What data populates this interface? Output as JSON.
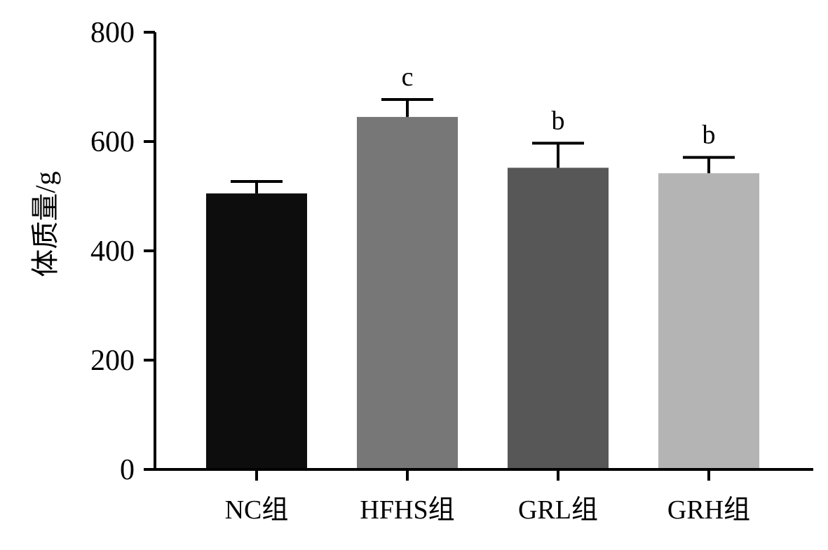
{
  "chart_data": {
    "type": "bar",
    "title": "",
    "xlabel": "",
    "ylabel": "体质量/g",
    "ylim": [
      0,
      800
    ],
    "yticks": [
      "0",
      "200",
      "400",
      "600",
      "800"
    ],
    "categories": [
      "NC组",
      "HFHS组",
      "GRL组",
      "GRH组"
    ],
    "values": [
      505,
      645,
      552,
      542
    ],
    "errors": [
      22,
      32,
      45,
      29
    ],
    "annotations": [
      "",
      "c",
      "b",
      "b"
    ],
    "colors": [
      "#0d0d0d",
      "#777777",
      "#575757",
      "#b4b4b4"
    ],
    "grid": false,
    "legend": "none"
  }
}
